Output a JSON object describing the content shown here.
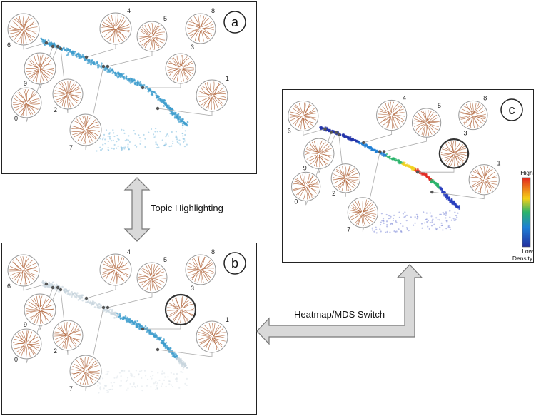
{
  "panels": [
    {
      "id": "a",
      "letter": "a",
      "highlighted": null,
      "mode": "mds"
    },
    {
      "id": "b",
      "letter": "b",
      "highlighted": "3",
      "mode": "mds"
    },
    {
      "id": "c",
      "letter": "c",
      "highlighted": "3",
      "mode": "heatmap"
    }
  ],
  "topics": [
    "0",
    "1",
    "2",
    "3",
    "4",
    "5",
    "6",
    "7",
    "8",
    "9"
  ],
  "legend": {
    "high": "High",
    "low_line1": "Low",
    "low_line2": "Density"
  },
  "arrows": {
    "topic_highlighting": "Topic Highlighting",
    "heatmap_mds_switch": "Heatmap/MDS Switch"
  },
  "colors": {
    "scatter": "#3d9ccd",
    "muted": "#c9d5de",
    "glyph_stroke": "#b0643a",
    "glyph_ring": "#999999",
    "arrow_fill": "#d9d9d9",
    "arrow_stroke": "#777777"
  }
}
